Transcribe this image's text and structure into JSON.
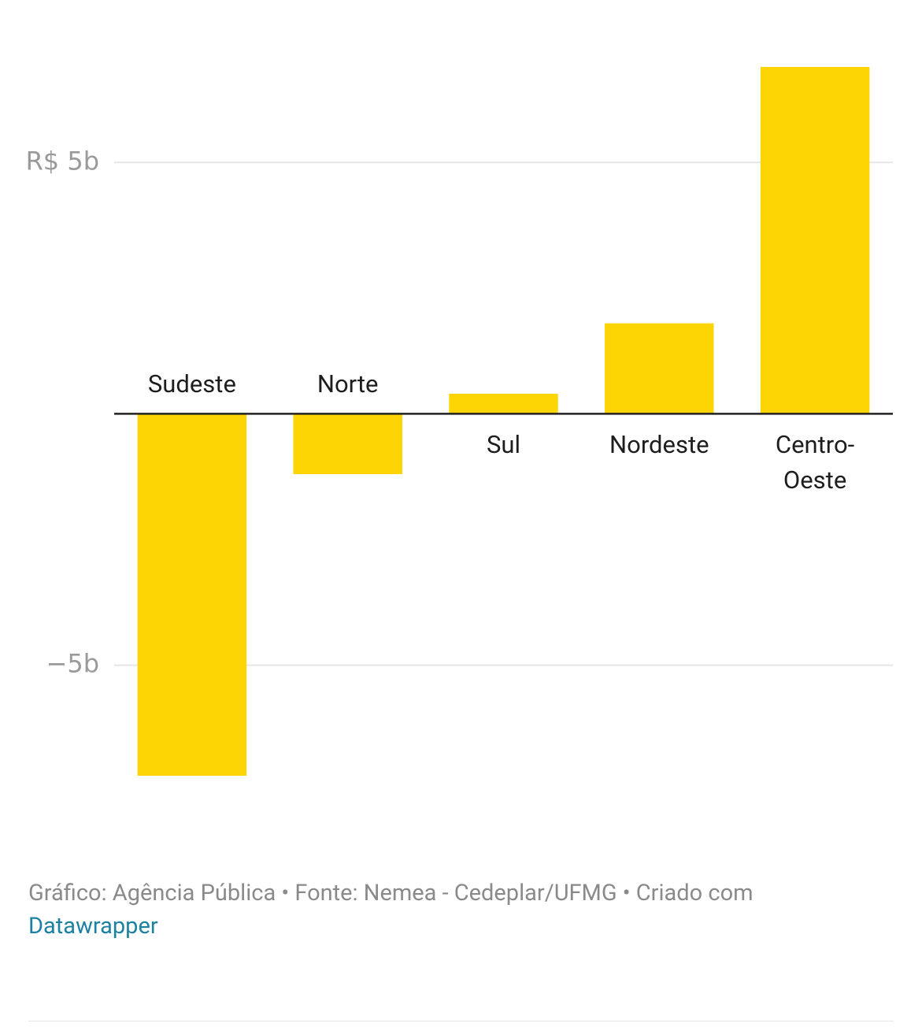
{
  "chart_data": {
    "type": "bar",
    "categories": [
      "Sudeste",
      "Norte",
      "Sul",
      "Nordeste",
      "Centro-Oeste"
    ],
    "values": [
      -7.2,
      -1.2,
      0.4,
      1.8,
      6.9
    ],
    "color": "#fdd404",
    "ylim": [
      -7.2,
      6.9
    ],
    "yticks": [
      {
        "value": 5,
        "label": "R$ 5b"
      },
      {
        "value": -5,
        "label": "−5b"
      }
    ],
    "grid": true,
    "source": "Gráfico: Agência Pública • Fonte: Nemea - Cedeplar/UFMG • Criado com",
    "credit_link": "Datawrapper"
  }
}
